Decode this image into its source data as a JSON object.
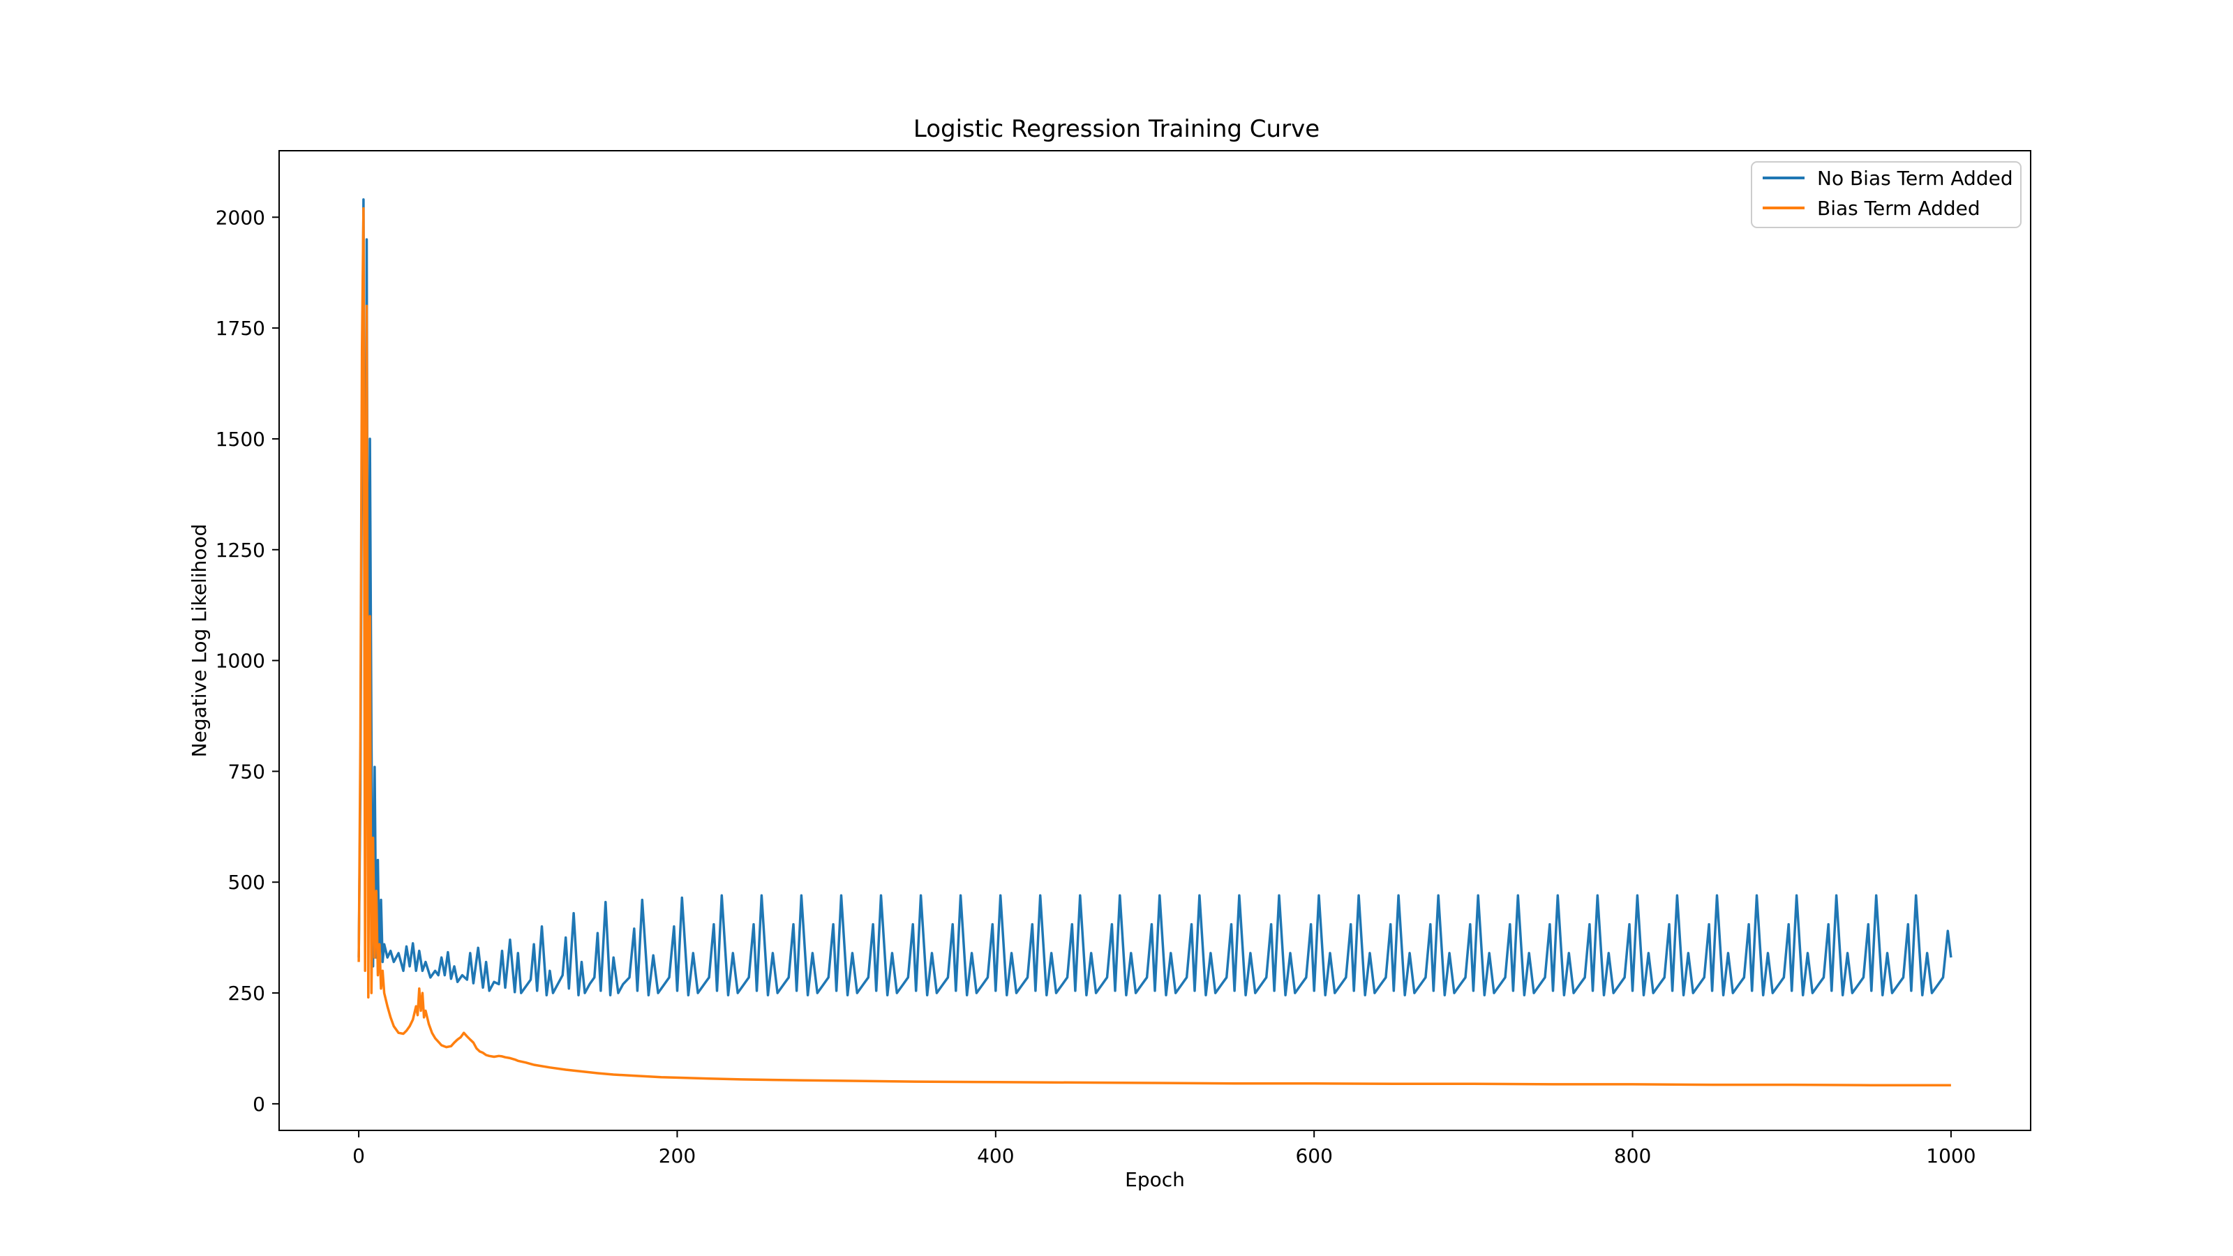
{
  "chart_data": {
    "type": "line",
    "title": "Logistic Regression Training Curve",
    "xlabel": "Epoch",
    "ylabel": "Negative Log Likelihood",
    "xlim": [
      -50,
      1050
    ],
    "ylim": [
      -60,
      2150
    ],
    "xticks": [
      0,
      200,
      400,
      600,
      800,
      1000
    ],
    "yticks": [
      0,
      250,
      500,
      750,
      1000,
      1250,
      1500,
      1750,
      2000
    ],
    "grid": false,
    "legend": "upper right",
    "series": [
      {
        "name": "No Bias Term Added",
        "color": "#1f77b4",
        "x": [
          0,
          1,
          2,
          3,
          4,
          5,
          6,
          7,
          8,
          9,
          10,
          11,
          12,
          13,
          14,
          15,
          16,
          18,
          20,
          22,
          25,
          28,
          30,
          32,
          34,
          36,
          38,
          40,
          42,
          45,
          48,
          50,
          52,
          54,
          56,
          58,
          60,
          62,
          65,
          68,
          70,
          72,
          75,
          78,
          80,
          82,
          85,
          88,
          90,
          92,
          95,
          98,
          100,
          102,
          105,
          108,
          110,
          112,
          115,
          118,
          120,
          122,
          125,
          128,
          130,
          132,
          135,
          138,
          140,
          142,
          145,
          148,
          150,
          152,
          155,
          158,
          160,
          163,
          166,
          170,
          173,
          175,
          178,
          182,
          185,
          188,
          192,
          195,
          198,
          200,
          203,
          207,
          210,
          213,
          217,
          220,
          223,
          225,
          228,
          232,
          235,
          238,
          242,
          245,
          248,
          250,
          253,
          257,
          260,
          263,
          267,
          270,
          273,
          275,
          278,
          282,
          285,
          288,
          292,
          295,
          298,
          300,
          303,
          307,
          310,
          313,
          317,
          320,
          323,
          325,
          328,
          332,
          335,
          338,
          342,
          345,
          348,
          350,
          353,
          357,
          360,
          363,
          367,
          370,
          373,
          375,
          378,
          382,
          385,
          388,
          392,
          395,
          398,
          400,
          403,
          407,
          410,
          413,
          417,
          420,
          423,
          425,
          428,
          432,
          435,
          438,
          442,
          445,
          448,
          450,
          453,
          457,
          460,
          463,
          467,
          470,
          473,
          475,
          478,
          482,
          485,
          488,
          492,
          495,
          498,
          500,
          503,
          507,
          510,
          513,
          517,
          520,
          523,
          525,
          528,
          532,
          535,
          538,
          542,
          545,
          548,
          550,
          553,
          557,
          560,
          563,
          567,
          570,
          573,
          575,
          578,
          582,
          585,
          588,
          592,
          595,
          598,
          600,
          603,
          607,
          610,
          613,
          617,
          620,
          623,
          625,
          628,
          632,
          635,
          638,
          642,
          645,
          648,
          650,
          653,
          657,
          660,
          663,
          667,
          670,
          673,
          675,
          678,
          682,
          685,
          688,
          692,
          695,
          698,
          700,
          703,
          707,
          710,
          713,
          717,
          720,
          723,
          725,
          728,
          732,
          735,
          738,
          742,
          745,
          748,
          750,
          753,
          757,
          760,
          763,
          767,
          770,
          773,
          775,
          778,
          782,
          785,
          788,
          792,
          795,
          798,
          800,
          803,
          807,
          810,
          813,
          817,
          820,
          823,
          825,
          828,
          832,
          835,
          838,
          842,
          845,
          848,
          850,
          853,
          857,
          860,
          863,
          867,
          870,
          873,
          875,
          878,
          882,
          885,
          888,
          892,
          895,
          898,
          900,
          903,
          907,
          910,
          913,
          917,
          920,
          923,
          925,
          928,
          932,
          935,
          938,
          942,
          945,
          948,
          950,
          953,
          957,
          960,
          963,
          967,
          970,
          973,
          975,
          978,
          982,
          985,
          988,
          992,
          995,
          998,
          1000
        ],
        "y": [
          330,
          700,
          1500,
          2040,
          600,
          1950,
          480,
          1500,
          820,
          310,
          760,
          330,
          550,
          300,
          460,
          320,
          360,
          330,
          345,
          320,
          340,
          300,
          355,
          310,
          362,
          300,
          345,
          300,
          320,
          285,
          300,
          290,
          330,
          290,
          342,
          282,
          310,
          275,
          290,
          280,
          340,
          272,
          352,
          262,
          320,
          255,
          275,
          270,
          345,
          262,
          370,
          252,
          340,
          250,
          265,
          280,
          360,
          255,
          400,
          245,
          300,
          250,
          270,
          290,
          375,
          260,
          430,
          245,
          320,
          250,
          270,
          285,
          385,
          255,
          455,
          245,
          330,
          250,
          270,
          285,
          395,
          255,
          460,
          245,
          335,
          250,
          270,
          285,
          400,
          255,
          465,
          245,
          340,
          250,
          270,
          285,
          405,
          255,
          470,
          245,
          340,
          250,
          270,
          285,
          405,
          255,
          470,
          245,
          340,
          250,
          270,
          285,
          405,
          255,
          470,
          245,
          340,
          250,
          270,
          285,
          405,
          255,
          470,
          245,
          340,
          250,
          270,
          285,
          405,
          255,
          470,
          245,
          340,
          250,
          270,
          285,
          405,
          255,
          470,
          245,
          340,
          250,
          270,
          285,
          405,
          255,
          470,
          245,
          340,
          250,
          270,
          285,
          405,
          255,
          470,
          245,
          340,
          250,
          270,
          285,
          405,
          255,
          470,
          245,
          340,
          250,
          270,
          285,
          405,
          255,
          470,
          245,
          340,
          250,
          270,
          285,
          405,
          255,
          470,
          245,
          340,
          250,
          270,
          285,
          405,
          255,
          470,
          245,
          340,
          250,
          270,
          285,
          405,
          255,
          470,
          245,
          340,
          250,
          270,
          285,
          405,
          255,
          470,
          245,
          340,
          250,
          270,
          285,
          405,
          255,
          470,
          245,
          340,
          250,
          270,
          285,
          405,
          255,
          470,
          245,
          340,
          250,
          270,
          285,
          405,
          255,
          470,
          245,
          340,
          250,
          270,
          285,
          405,
          255,
          470,
          245,
          340,
          250,
          270,
          285,
          405,
          255,
          470,
          245,
          340,
          250,
          270,
          285,
          405,
          255,
          470,
          245,
          340,
          250,
          270,
          285,
          405,
          255,
          470,
          245,
          340,
          250,
          270,
          285,
          405,
          255,
          470,
          245,
          340,
          250,
          270,
          285,
          405,
          255,
          470,
          245,
          340,
          250,
          270,
          285,
          405,
          255,
          470,
          245,
          340,
          250,
          270,
          285,
          405,
          255,
          470,
          245,
          340,
          250,
          270,
          285,
          405,
          255,
          470,
          245,
          340,
          250,
          270,
          285,
          405,
          255,
          470,
          245,
          340,
          250,
          270,
          285,
          405,
          255,
          470,
          245,
          340,
          250,
          270,
          285,
          405,
          255,
          470,
          245,
          340,
          250,
          270,
          285,
          405,
          255,
          470,
          245,
          340,
          250,
          270,
          285,
          405,
          255,
          470,
          245,
          340,
          250,
          270,
          285,
          390,
          330
        ]
      },
      {
        "name": "Bias Term Added",
        "color": "#ff7f0e",
        "x": [
          0,
          1,
          2,
          3,
          4,
          5,
          6,
          7,
          8,
          9,
          10,
          11,
          12,
          13,
          14,
          15,
          16,
          18,
          20,
          22,
          25,
          28,
          30,
          32,
          34,
          36,
          37,
          38,
          39,
          40,
          41,
          42,
          44,
          46,
          48,
          50,
          52,
          55,
          58,
          60,
          62,
          64,
          66,
          68,
          70,
          72,
          74,
          76,
          78,
          80,
          82,
          85,
          88,
          90,
          92,
          95,
          98,
          100,
          105,
          110,
          120,
          130,
          140,
          150,
          160,
          170,
          180,
          190,
          200,
          220,
          240,
          260,
          280,
          300,
          350,
          400,
          450,
          500,
          550,
          600,
          650,
          700,
          750,
          800,
          850,
          900,
          950,
          1000
        ],
        "y": [
          320,
          800,
          1700,
          2020,
          300,
          1800,
          240,
          1100,
          250,
          600,
          330,
          480,
          290,
          360,
          260,
          300,
          250,
          220,
          195,
          175,
          160,
          158,
          165,
          175,
          190,
          220,
          200,
          260,
          210,
          250,
          195,
          210,
          180,
          160,
          148,
          140,
          132,
          128,
          130,
          138,
          145,
          150,
          160,
          152,
          145,
          138,
          125,
          118,
          115,
          110,
          108,
          106,
          108,
          107,
          105,
          103,
          100,
          97,
          93,
          88,
          82,
          77,
          73,
          69,
          66,
          64,
          62,
          60,
          59,
          57,
          55,
          54,
          53,
          52,
          50,
          49,
          48,
          47,
          46,
          46,
          45,
          45,
          44,
          44,
          43,
          43,
          42,
          42
        ]
      }
    ]
  }
}
